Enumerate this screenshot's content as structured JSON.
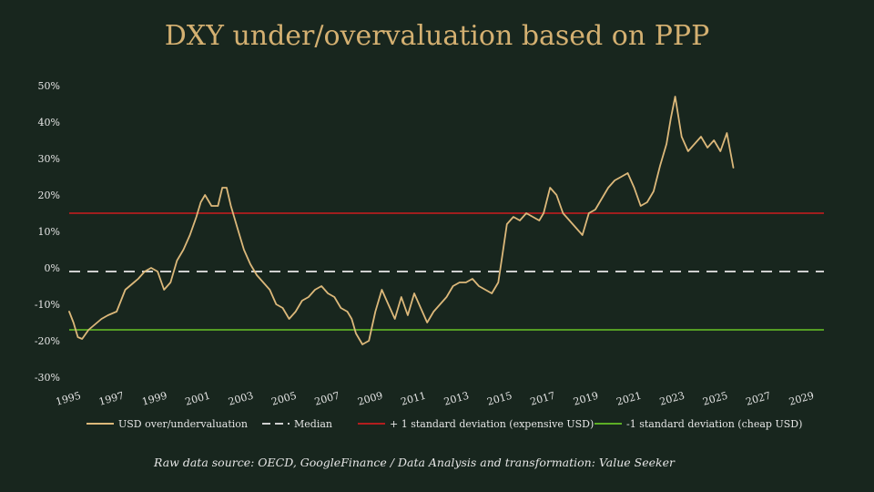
{
  "chart_data": {
    "type": "line",
    "title": "DXY under/overvaluation based on PPP",
    "source_note": "Raw data source: OECD, GoogleFinance / Data Analysis and transformation: Value Seeker",
    "xlim": [
      1995,
      2030
    ],
    "ylim": [
      -30,
      50
    ],
    "x_tick_labels": [
      "1995",
      "1997",
      "1999",
      "2001",
      "2003",
      "2005",
      "2007",
      "2009",
      "2011",
      "2013",
      "2015",
      "2017",
      "2019",
      "2021",
      "2023",
      "2025",
      "2027",
      "2029"
    ],
    "y_tick_labels": [
      "-30%",
      "-20%",
      "-10%",
      "0%",
      "10%",
      "20%",
      "30%",
      "40%",
      "50%"
    ],
    "grid": false,
    "legend_position": "bottom",
    "colors": {
      "usd": "#dcb87a",
      "median": "#cfcfcf",
      "plus_sd": "#b31e1e",
      "minus_sd": "#5cae25"
    },
    "series": [
      {
        "name": "USD over/undervaluation",
        "x": [
          1995.0,
          1995.2,
          1995.4,
          1995.6,
          1995.9,
          1996.2,
          1996.5,
          1996.8,
          1997.2,
          1997.6,
          1998.0,
          1998.2,
          1998.5,
          1998.8,
          1999.1,
          1999.4,
          1999.7,
          2000.0,
          2000.3,
          2000.6,
          2000.9,
          2001.1,
          2001.3,
          2001.6,
          2001.9,
          2002.1,
          2002.3,
          2002.5,
          2002.8,
          2003.1,
          2003.4,
          2003.7,
          2004.0,
          2004.3,
          2004.6,
          2004.9,
          2005.2,
          2005.5,
          2005.8,
          2006.1,
          2006.4,
          2006.7,
          2007.0,
          2007.3,
          2007.6,
          2007.9,
          2008.1,
          2008.3,
          2008.6,
          2008.9,
          2009.2,
          2009.5,
          2009.8,
          2010.1,
          2010.4,
          2010.7,
          2011.0,
          2011.3,
          2011.6,
          2011.9,
          2012.2,
          2012.5,
          2012.8,
          2013.1,
          2013.4,
          2013.7,
          2014.0,
          2014.3,
          2014.6,
          2014.9,
          2015.1,
          2015.3,
          2015.6,
          2015.9,
          2016.2,
          2016.5,
          2016.8,
          2017.0,
          2017.3,
          2017.6,
          2017.9,
          2018.2,
          2018.5,
          2018.8,
          2019.1,
          2019.4,
          2019.7,
          2020.0,
          2020.3,
          2020.6,
          2020.9,
          2021.2,
          2021.5,
          2021.8,
          2022.1,
          2022.4,
          2022.7,
          2022.9,
          2023.1,
          2023.4,
          2023.7,
          2024.0,
          2024.3,
          2024.6,
          2024.9,
          2025.2,
          2025.5,
          2025.8
        ],
        "values": [
          -12,
          -15,
          -19,
          -19.5,
          -17,
          -15.5,
          -14,
          -13,
          -12,
          -6,
          -4,
          -3,
          -1,
          0,
          -1,
          -6,
          -4,
          2,
          5,
          9,
          14,
          18,
          20,
          17,
          17,
          22,
          22,
          17,
          11,
          5,
          1,
          -2,
          -4,
          -6,
          -10,
          -11,
          -14,
          -12,
          -9,
          -8,
          -6,
          -5,
          -7,
          -8,
          -11,
          -12,
          -14,
          -18,
          -21,
          -20,
          -12,
          -6,
          -10,
          -14,
          -8,
          -13,
          -7,
          -11,
          -15,
          -12,
          -10,
          -8,
          -5,
          -4,
          -4,
          -3,
          -5,
          -6,
          -7,
          -4,
          4,
          12,
          14,
          13,
          15,
          14,
          13,
          15,
          22,
          20,
          15,
          13,
          11,
          9,
          15,
          16,
          19,
          22,
          24,
          25,
          26,
          22,
          17,
          18,
          21,
          28,
          34,
          41,
          47,
          36,
          32,
          34,
          36,
          33,
          35,
          32,
          37,
          27.5
        ]
      },
      {
        "name": "Median",
        "value": -1
      },
      {
        "name": "+ 1 standard deviation (expensive USD)",
        "value": 15
      },
      {
        "name": "-1 standard deviation (cheap USD)",
        "value": -17
      }
    ]
  }
}
